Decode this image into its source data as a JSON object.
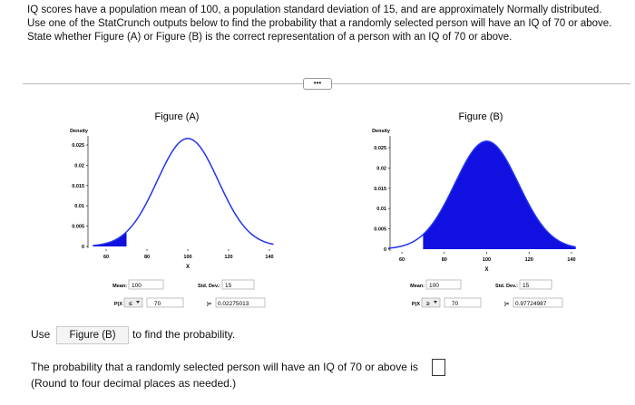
{
  "question": {
    "text": "IQ scores have a population mean of 100, a population standard deviation of 15, and are approximately Normally distributed. Use one of the StatCrunch outputs below to find the probability that a randomly selected person will have an IQ of 70 or above. State whether Figure (A) or Figure (B) is the correct representation of a person with an IQ of 70 or above."
  },
  "figures": [
    {
      "title": "Figure (A)",
      "y_label": "Density",
      "x_label": "X",
      "yticks": [
        0,
        0.005,
        0.01,
        0.015,
        0.02,
        0.025
      ],
      "xticks": [
        60,
        80,
        100,
        120,
        140
      ],
      "mean_label": "Mean:",
      "mean": 100,
      "sd_label": "Std. Dev.:",
      "sd": 15,
      "prob_label": "P(X",
      "operator": "≤",
      "x": 70,
      "equals_label": ")=",
      "result": 0.02275013,
      "shade": "left"
    },
    {
      "title": "Figure (B)",
      "y_label": "Density",
      "x_label": "X",
      "yticks": [
        0,
        0.005,
        0.01,
        0.015,
        0.02,
        0.025
      ],
      "xticks": [
        60,
        80,
        100,
        120,
        140
      ],
      "mean_label": "Mean:",
      "mean": 100,
      "sd_label": "Std. Dev.:",
      "sd": 15,
      "prob_label": "P(X",
      "operator": "≥",
      "x": 70,
      "equals_label": ")=",
      "result": 0.97724987,
      "shade": "right"
    }
  ],
  "answer": {
    "use_label": "Use",
    "selected": "Figure (B)",
    "use_suffix": "to find the probability.",
    "prompt": "The probability that a randomly selected person will have an IQ of 70 or above is",
    "note": "(Round to four decimal places as needed.)"
  }
}
